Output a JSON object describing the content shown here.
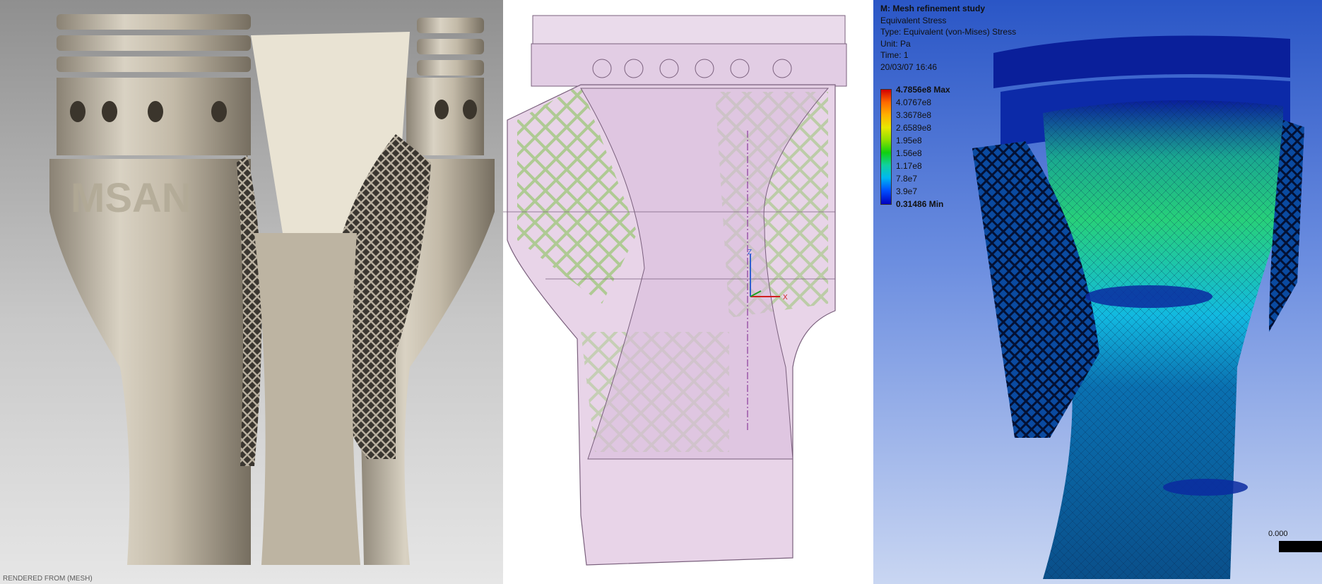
{
  "panels": {
    "render": {
      "engraving": "MSAN",
      "footer_text": "RENDERED FROM (MESH)"
    },
    "cad_view": {
      "axes": {
        "z": "Z",
        "x": "X"
      }
    },
    "fea_result": {
      "title": "M: Mesh refinement study",
      "result_name": "Equivalent Stress",
      "type": "Type: Equivalent (von-Mises) Stress",
      "unit": "Unit: Pa",
      "time": "Time: 1",
      "timestamp": "20/03/07 16:46",
      "legend": [
        "4.7856e8 Max",
        "4.0767e8",
        "3.3678e8",
        "2.6589e8",
        "1.95e8",
        "1.56e8",
        "1.17e8",
        "7.8e7",
        "3.9e7",
        "0.31486 Min"
      ],
      "scale_label": "0.000",
      "colors": {
        "max": "#d40000",
        "min": "#0000c0",
        "background_top": "#2a56c6",
        "background_bottom": "#c9d6f2"
      }
    }
  }
}
